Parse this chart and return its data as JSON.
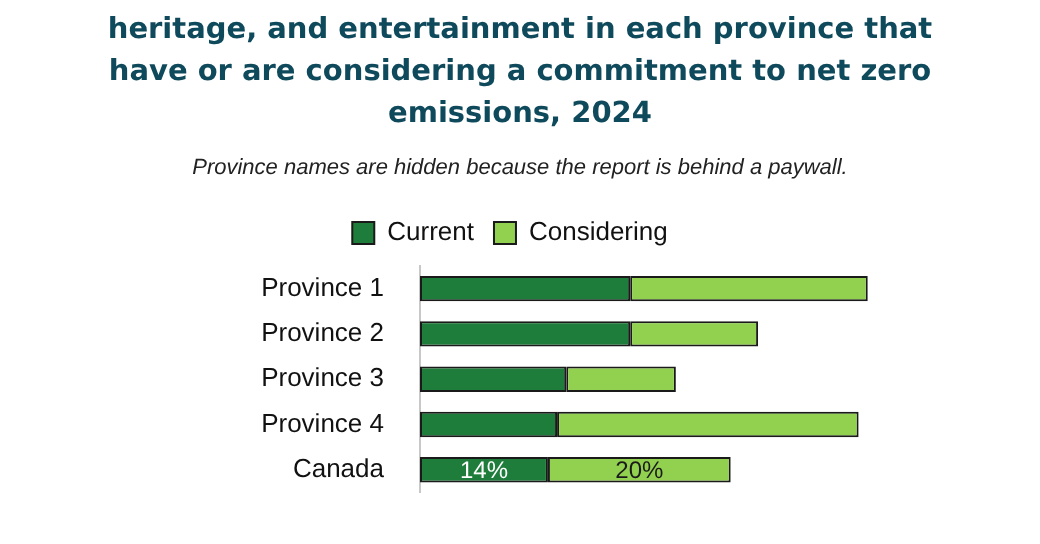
{
  "chart_data": {
    "type": "bar",
    "orientation": "horizontal",
    "stacked": true,
    "title": "heritage, and entertainment in each province that have or are considering a commitment to net zero emissions, 2024",
    "subtitle": "Province names are hidden because the report is behind a paywall.",
    "categories": [
      "Province 1",
      "Province 2",
      "Province 3",
      "Province 4",
      "Canada"
    ],
    "series": [
      {
        "name": "Current",
        "color": "#1e7d3a",
        "values": [
          23,
          23,
          16,
          15,
          14
        ],
        "value_labels": [
          null,
          null,
          null,
          null,
          "14%"
        ]
      },
      {
        "name": "Considering",
        "color": "#92d050",
        "values": [
          26,
          14,
          12,
          33,
          20
        ],
        "value_labels": [
          null,
          null,
          null,
          null,
          "20%"
        ]
      }
    ],
    "legend": "top"
  }
}
